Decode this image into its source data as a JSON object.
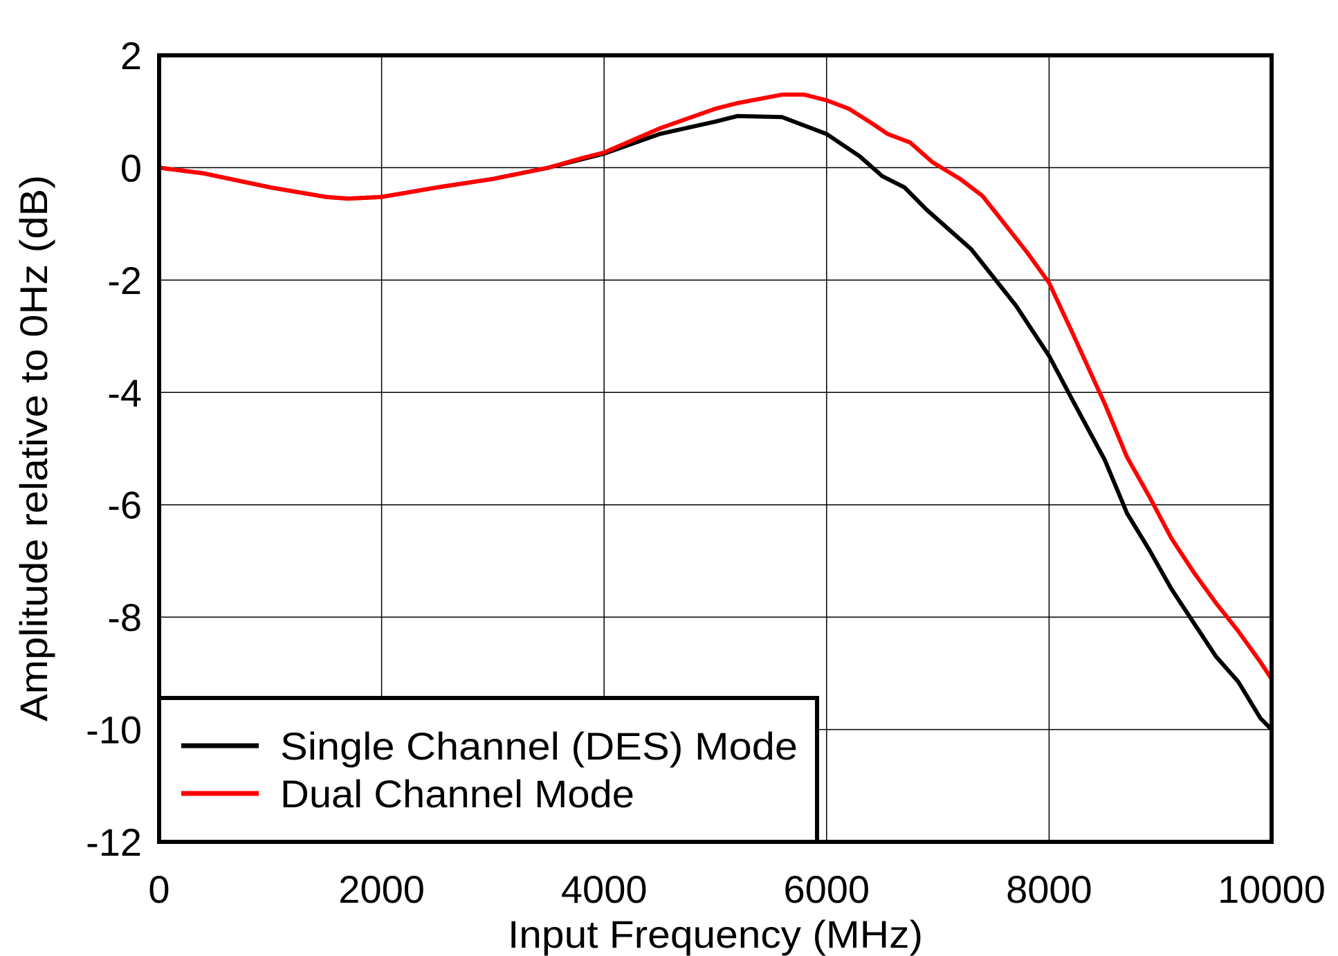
{
  "chart_data": {
    "type": "line",
    "title": "",
    "xlabel": "Input Frequency  (MHz)",
    "ylabel": "Amplitude relative to 0Hz  (dB)",
    "xlim": [
      0,
      10000
    ],
    "ylim": [
      -12,
      2
    ],
    "xticks": [
      0,
      2000,
      4000,
      6000,
      8000,
      10000
    ],
    "yticks": [
      2,
      0,
      -2,
      -4,
      -6,
      -8,
      -10,
      -12
    ],
    "grid": true,
    "legend_position": "bottom-left",
    "series": [
      {
        "name": "Single Channel  (DES) Mode",
        "color": "#000000",
        "x": [
          0,
          400,
          1000,
          1500,
          1700,
          2000,
          2500,
          3000,
          3500,
          3800,
          4000,
          4500,
          5000,
          5200,
          5600,
          6000,
          6300,
          6500,
          6700,
          6900,
          7300,
          7700,
          8000,
          8200,
          8500,
          8700,
          8900,
          9100,
          9300,
          9500,
          9700,
          9900,
          10000
        ],
        "y": [
          0,
          -0.1,
          -0.35,
          -0.52,
          -0.55,
          -0.52,
          -0.35,
          -0.2,
          0,
          0.15,
          0.25,
          0.6,
          0.82,
          0.92,
          0.9,
          0.6,
          0.2,
          -0.15,
          -0.35,
          -0.75,
          -1.45,
          -2.45,
          -3.35,
          -4.1,
          -5.2,
          -6.15,
          -6.8,
          -7.5,
          -8.1,
          -8.7,
          -9.15,
          -9.8,
          -10
        ]
      },
      {
        "name": "Dual Channel Mode",
        "color": "#ff0000",
        "x": [
          0,
          400,
          1000,
          1500,
          1700,
          2000,
          2500,
          3000,
          3500,
          3800,
          4000,
          4500,
          5000,
          5200,
          5600,
          5800,
          6000,
          6200,
          6400,
          6550,
          6750,
          6950,
          7200,
          7400,
          7600,
          7800,
          8000,
          8200,
          8500,
          8700,
          8900,
          9100,
          9300,
          9500,
          9700,
          9900,
          10000
        ],
        "y": [
          0,
          -0.1,
          -0.35,
          -0.52,
          -0.55,
          -0.52,
          -0.35,
          -0.2,
          0,
          0.17,
          0.27,
          0.7,
          1.05,
          1.15,
          1.3,
          1.3,
          1.2,
          1.05,
          0.8,
          0.6,
          0.45,
          0.1,
          -0.2,
          -0.5,
          -1.0,
          -1.5,
          -2.05,
          -2.9,
          -4.2,
          -5.15,
          -5.85,
          -6.6,
          -7.2,
          -7.75,
          -8.25,
          -8.8,
          -9.1
        ]
      }
    ]
  }
}
